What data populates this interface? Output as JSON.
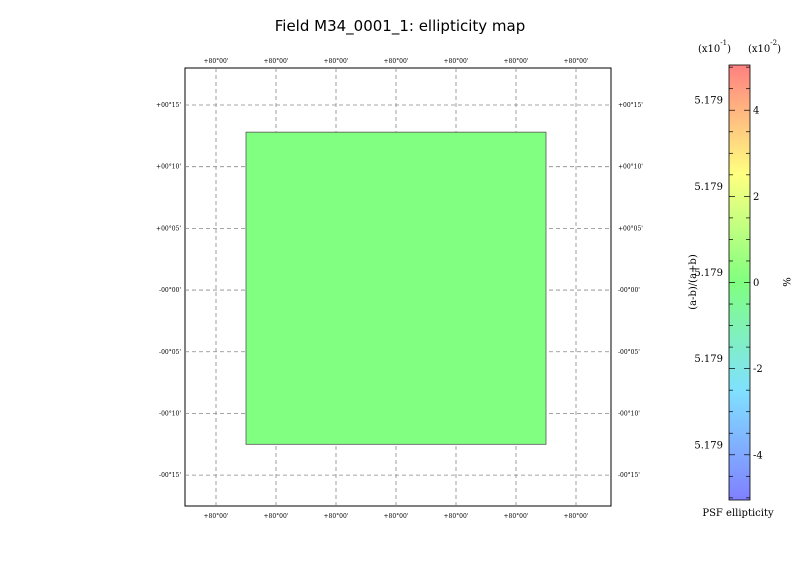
{
  "page": {
    "title": "Field M34_0001_1: ellipticity map"
  },
  "chart_data": {
    "type": "heatmap",
    "title": "Field M34_0001_1: ellipticity map",
    "x_tick_labels": [
      "+80°00'",
      "+80°00'",
      "+80°00'",
      "+80°00'",
      "+80°00'",
      "+80°00'",
      "+80°00'"
    ],
    "y_tick_labels": [
      "+00°15'",
      "+00°10'",
      "+00°05'",
      "-00°00'",
      "-00°05'",
      "-00°10'",
      "-00°15'"
    ],
    "y_values_arcmin": [
      15,
      10,
      5,
      0,
      -5,
      -10,
      -15
    ],
    "ylim_arcmin": [
      -17.5,
      18
    ],
    "grid": true,
    "field": {
      "x_extent": [
        -2.5,
        2.5
      ],
      "y_extent_arcmin": [
        -12.5,
        12.8
      ],
      "percent_ellipticity": 0.0,
      "color": "#80ff80"
    },
    "colorbar": {
      "label": "PSF ellipticity",
      "left_axis_label": "(a-b)/(a+b)",
      "right_axis_label": "%",
      "left_multiplier": "(x10",
      "left_multiplier_exp": "-1",
      "right_multiplier": "(x10",
      "right_multiplier_exp": "-2",
      "left_ticks": [
        "5.179",
        "5.179",
        "5.179",
        "5.179",
        "5.179"
      ],
      "right_ticks": [
        "4",
        "2",
        "0",
        "-2",
        "-4"
      ],
      "right_tick_values": [
        4,
        2,
        0,
        -2,
        -4
      ],
      "range": [
        -5.05,
        5.05
      ],
      "colors": [
        "#8080ff",
        "#80e0ff",
        "#80ff80",
        "#ffff80",
        "#ff8080"
      ]
    }
  }
}
